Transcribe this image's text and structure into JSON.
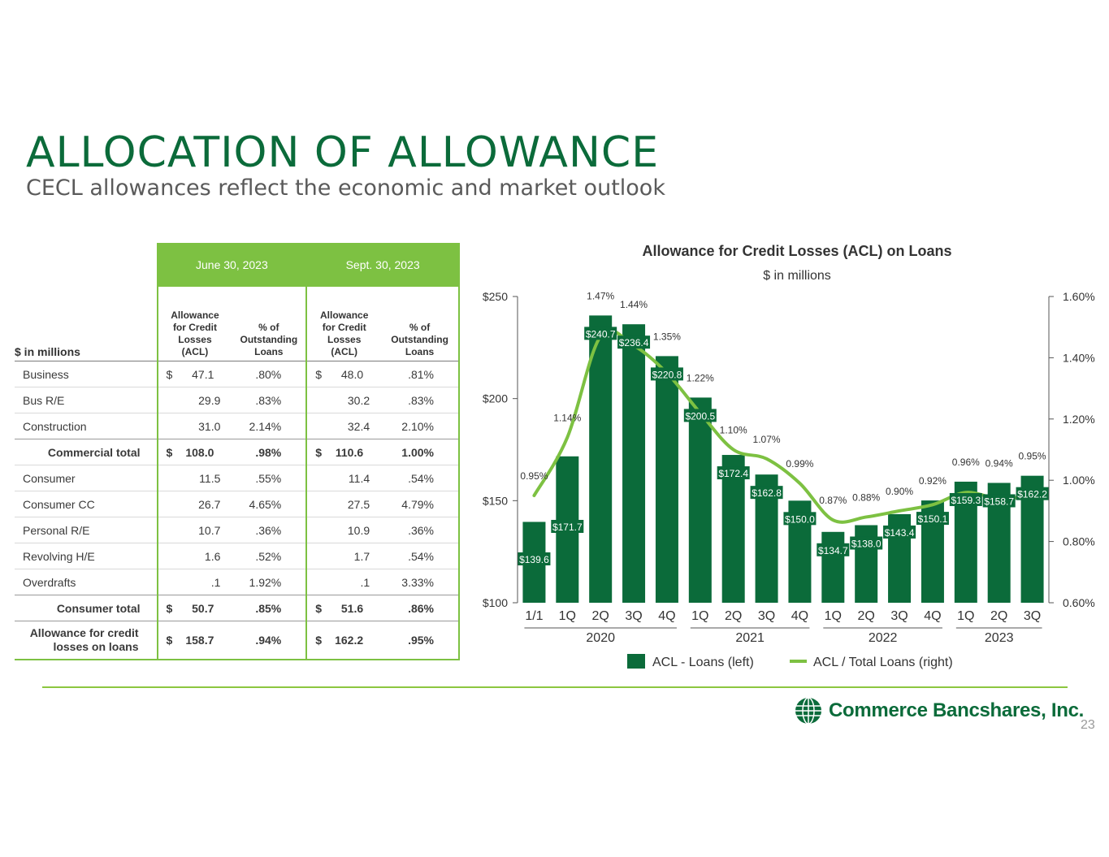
{
  "page": {
    "title": "ALLOCATION OF ALLOWANCE",
    "subtitle": "CECL allowances reflect the economic and market outlook",
    "page_number": "23",
    "logo_text": "Commerce Bancshares, Inc.",
    "colors": {
      "dark_green": "#0b6b3a",
      "light_green": "#7dc142"
    }
  },
  "table": {
    "units_label": "$ in millions",
    "period1": "June 30, 2023",
    "period2": "Sept. 30, 2023",
    "col_acl": "Allowance for Credit Losses (ACL)",
    "col_pct": "% of Outstanding Loans",
    "rows": [
      {
        "label": "Business",
        "acl1": "47.1",
        "pct1": ".80%",
        "acl2": "48.0",
        "pct2": ".81%",
        "dollar": true
      },
      {
        "label": "Bus R/E",
        "acl1": "29.9",
        "pct1": ".83%",
        "acl2": "30.2",
        "pct2": ".83%"
      },
      {
        "label": "Construction",
        "acl1": "31.0",
        "pct1": "2.14%",
        "acl2": "32.4",
        "pct2": "2.10%"
      },
      {
        "label": "Commercial total",
        "acl1": "108.0",
        "pct1": ".98%",
        "acl2": "110.6",
        "pct2": "1.00%",
        "bold": true
      },
      {
        "label": "Consumer",
        "acl1": "11.5",
        "pct1": ".55%",
        "acl2": "11.4",
        "pct2": ".54%"
      },
      {
        "label": "Consumer CC",
        "acl1": "26.7",
        "pct1": "4.65%",
        "acl2": "27.5",
        "pct2": "4.79%"
      },
      {
        "label": "Personal R/E",
        "acl1": "10.7",
        "pct1": ".36%",
        "acl2": "10.9",
        "pct2": ".36%"
      },
      {
        "label": "Revolving H/E",
        "acl1": "1.6",
        "pct1": ".52%",
        "acl2": "1.7",
        "pct2": ".54%"
      },
      {
        "label": "Overdrafts",
        "acl1": ".1",
        "pct1": "1.92%",
        "acl2": ".1",
        "pct2": "3.33%"
      },
      {
        "label": "Consumer total",
        "acl1": "50.7",
        "pct1": ".85%",
        "acl2": "51.6",
        "pct2": ".86%",
        "bold": true
      }
    ],
    "total": {
      "label": "Allowance for credit losses on loans",
      "acl1": "158.7",
      "pct1": ".94%",
      "acl2": "162.2",
      "pct2": ".95%"
    }
  },
  "chart_data": {
    "type": "bar",
    "title": "Allowance for Credit Losses (ACL) on Loans",
    "subtitle": "$ in millions",
    "categories": [
      "1/1",
      "1Q",
      "2Q",
      "3Q",
      "4Q",
      "1Q",
      "2Q",
      "3Q",
      "4Q",
      "1Q",
      "2Q",
      "3Q",
      "4Q",
      "1Q",
      "2Q",
      "3Q"
    ],
    "year_groups": [
      {
        "label": "2020",
        "start": 0,
        "end": 4
      },
      {
        "label": "2021",
        "start": 5,
        "end": 8
      },
      {
        "label": "2022",
        "start": 9,
        "end": 12
      },
      {
        "label": "2023",
        "start": 13,
        "end": 15
      }
    ],
    "series": [
      {
        "name": "ACL - Loans (left)",
        "type": "bar",
        "color": "#0b6b3a",
        "values": [
          139.6,
          171.7,
          240.7,
          236.4,
          220.8,
          200.5,
          172.4,
          162.8,
          150.0,
          134.7,
          138.0,
          143.4,
          150.1,
          159.3,
          158.7,
          162.2
        ],
        "labels": [
          "$139.6",
          "$171.7",
          "$240.7",
          "$236.4",
          "$220.8",
          "$200.5",
          "$172.4",
          "$162.8",
          "$150.0",
          "$134.7",
          "$138.0",
          "$143.4",
          "$150.1",
          "$159.3",
          "$158.7",
          "$162.2"
        ]
      },
      {
        "name": "ACL / Total Loans  (right)",
        "type": "line",
        "axis": "right",
        "color": "#7dc142",
        "values": [
          0.95,
          1.14,
          1.47,
          1.44,
          1.35,
          1.22,
          1.1,
          1.07,
          0.99,
          0.87,
          0.88,
          0.9,
          0.92,
          0.96,
          0.94,
          0.95
        ],
        "labels": [
          "0.95%",
          "1.14%",
          "1.47%",
          "1.44%",
          "1.35%",
          "1.22%",
          "1.10%",
          "1.07%",
          "0.99%",
          "0.87%",
          "0.88%",
          "0.90%",
          "0.92%",
          "0.96%",
          "0.94%",
          "0.95%"
        ]
      }
    ],
    "y_left": {
      "ylim": [
        100,
        250
      ],
      "ticks": [
        "$100",
        "$150",
        "$200",
        "$250"
      ]
    },
    "y_right": {
      "ylim": [
        0.6,
        1.6
      ],
      "ticks": [
        "0.60%",
        "0.80%",
        "1.00%",
        "1.20%",
        "1.40%",
        "1.60%"
      ]
    },
    "legend": "bottom"
  }
}
